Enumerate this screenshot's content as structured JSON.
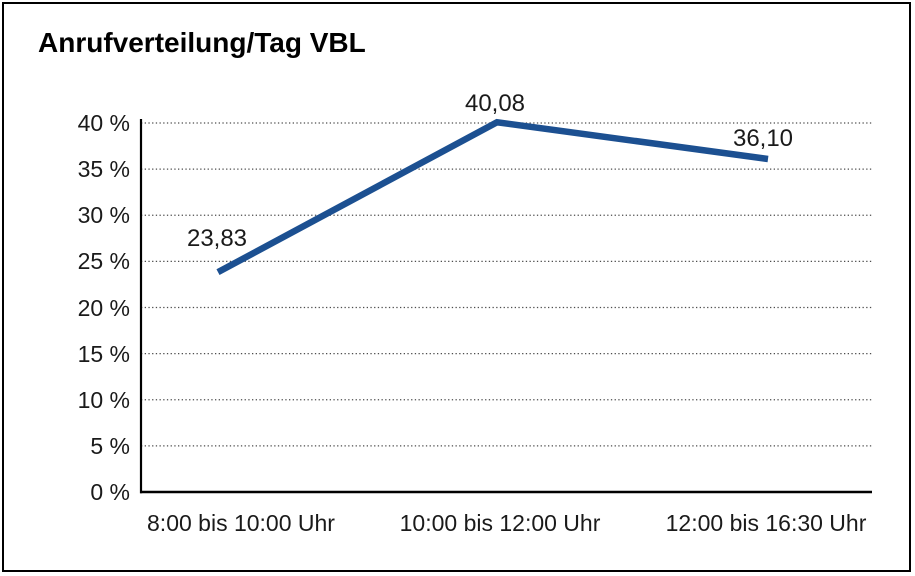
{
  "window": {
    "background": "#ffffff",
    "frame_border_color": "#000000"
  },
  "chart_data": {
    "type": "line",
    "title": "Anrufverteilung/Tag VBL",
    "categories": [
      "8:00 bis 10:00 Uhr",
      "10:00 bis 12:00 Uhr",
      "12:00 bis 16:30 Uhr"
    ],
    "values": [
      23.83,
      40.08,
      36.1
    ],
    "value_labels": [
      "23,83",
      "40,08",
      "36,10"
    ],
    "xlabel": "",
    "ylabel": "",
    "ylim": [
      0,
      40
    ],
    "y_tick_values": [
      0,
      5,
      10,
      15,
      20,
      25,
      30,
      35,
      40
    ],
    "y_tick_labels": [
      "0 %",
      "5 %",
      "10 %",
      "15 %",
      "20 %",
      "25 %",
      "30 %",
      "35 %",
      "40 %"
    ],
    "grid": "horizontal-dotted",
    "legend": "none",
    "line_color": "#1c5091",
    "grid_color": "#4d4d4d",
    "axis_color": "#000000",
    "text_color": "#1a1a1a"
  }
}
